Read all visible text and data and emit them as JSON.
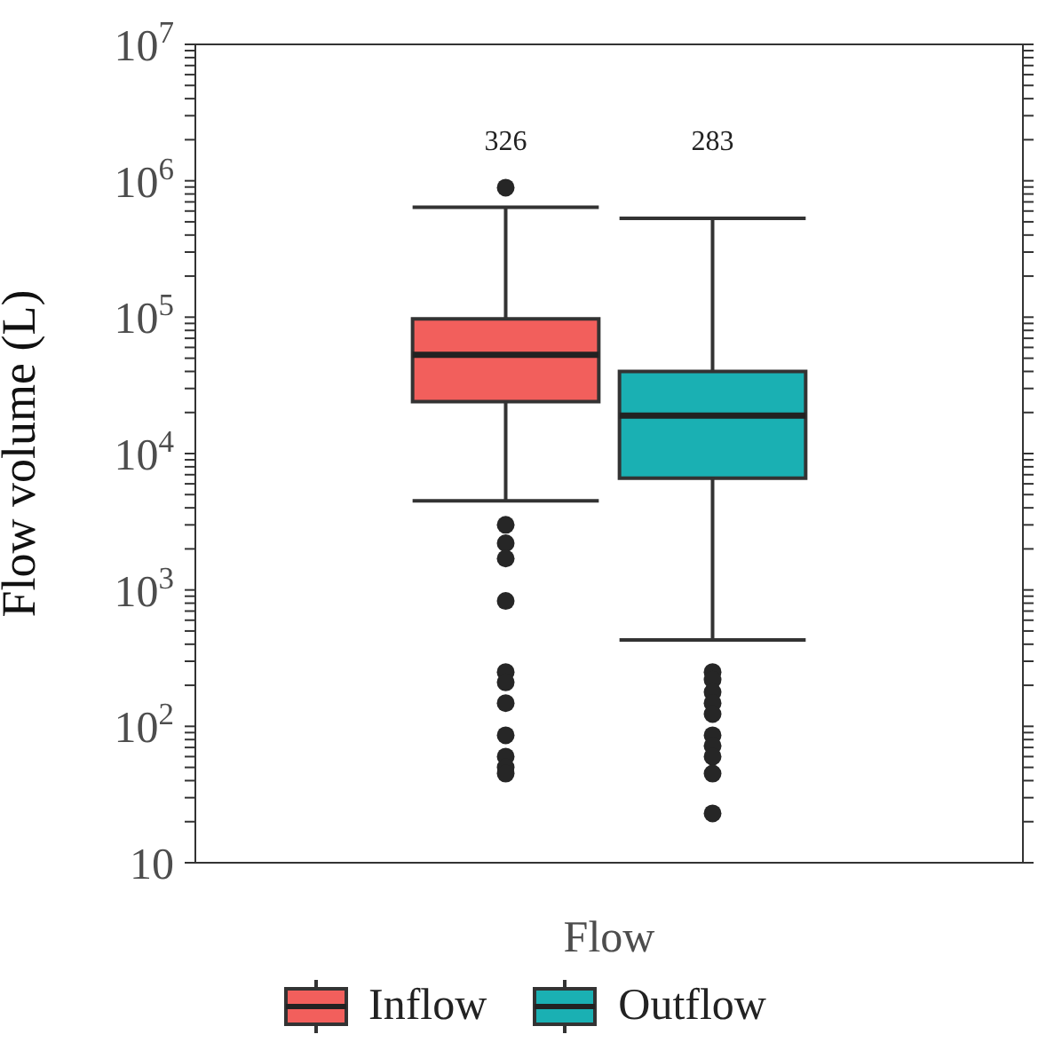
{
  "chart_data": {
    "type": "box",
    "xlabel": "Flow",
    "ylabel": "Flow volume (L)",
    "categories": [
      null
    ],
    "log": true,
    "ylim": [
      10,
      10000000
    ],
    "yticks": [
      {
        "value": 10,
        "label": "10"
      },
      {
        "value": 20,
        "label": null
      },
      {
        "value": 30,
        "label": null
      },
      {
        "value": 40,
        "label": null
      },
      {
        "value": 50,
        "label": null
      },
      {
        "value": 60,
        "label": null
      },
      {
        "value": 70,
        "label": null
      },
      {
        "value": 80,
        "label": null
      },
      {
        "value": 90,
        "label": null
      },
      {
        "value": 100,
        "label": "10$^{2}$"
      },
      {
        "value": 200,
        "label": null
      },
      {
        "value": 300,
        "label": null
      },
      {
        "value": 400,
        "label": null
      },
      {
        "value": 500,
        "label": null
      },
      {
        "value": 600,
        "label": null
      },
      {
        "value": 700,
        "label": null
      },
      {
        "value": 800,
        "label": null
      },
      {
        "value": 900,
        "label": null
      },
      {
        "value": 1000,
        "label": "10$^{3}$"
      },
      {
        "value": 2000,
        "label": null
      },
      {
        "value": 3000,
        "label": null
      },
      {
        "value": 4000,
        "label": null
      },
      {
        "value": 5000,
        "label": null
      },
      {
        "value": 6000,
        "label": null
      },
      {
        "value": 7000,
        "label": null
      },
      {
        "value": 8000,
        "label": null
      },
      {
        "value": 9000,
        "label": null
      },
      {
        "value": 10000,
        "label": "10$^{4}$"
      },
      {
        "value": 20000,
        "label": null
      },
      {
        "value": 30000,
        "label": null
      },
      {
        "value": 40000,
        "label": null
      },
      {
        "value": 50000,
        "label": null
      },
      {
        "value": 60000,
        "label": null
      },
      {
        "value": 70000,
        "label": null
      },
      {
        "value": 80000,
        "label": null
      },
      {
        "value": 90000,
        "label": null
      },
      {
        "value": 100000,
        "label": "10$^{5}$"
      },
      {
        "value": 200000,
        "label": null
      },
      {
        "value": 300000,
        "label": null
      },
      {
        "value": 400000,
        "label": null
      },
      {
        "value": 500000,
        "label": null
      },
      {
        "value": 600000,
        "label": null
      },
      {
        "value": 700000,
        "label": null
      },
      {
        "value": 800000,
        "label": null
      },
      {
        "value": 900000,
        "label": null
      },
      {
        "value": 1000000,
        "label": "10$^{6}$"
      },
      {
        "value": 2000000,
        "label": null
      },
      {
        "value": 3000000,
        "label": null
      },
      {
        "value": 4000000,
        "label": null
      },
      {
        "value": 5000000,
        "label": null
      },
      {
        "value": 6000000,
        "label": null
      },
      {
        "value": 7000000,
        "label": null
      },
      {
        "value": 8000000,
        "label": null
      },
      {
        "value": 9000000,
        "label": null
      },
      {
        "value": 10000000,
        "label": "10$^{7}$"
      }
    ],
    "tick_labels": "y",
    "legend": "bottom",
    "annotations": [
      "326",
      "283"
    ],
    "series": [
      {
        "name": "Inflow",
        "color": "#f25f5c",
        "boxes": [
          {
            "low": 4500,
            "q1": 24000,
            "median": 53000,
            "q3": 97000,
            "high": 640000,
            "outliers": [
              890000,
              3000,
              2200,
              1700,
              830,
              250,
              210,
              148,
              86,
              60,
              50,
              45
            ]
          }
        ]
      },
      {
        "name": "Outflow",
        "color": "#1ab0b3",
        "boxes": [
          {
            "low": 430,
            "q1": 6600,
            "median": 19000,
            "q3": 40000,
            "high": 530000,
            "outliers": [
              250,
              220,
              178,
              148,
              123,
              86,
              72,
              60,
              45,
              23
            ]
          }
        ]
      }
    ]
  }
}
